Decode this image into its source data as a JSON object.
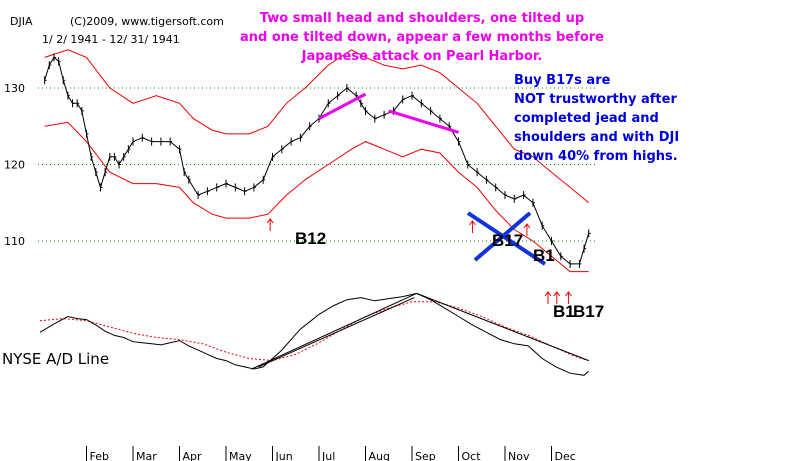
{
  "chart_data": {
    "type": "line",
    "title": "DJIA",
    "copyright": "(C)2009, www.tigersoft.com",
    "date_range": "1/ 2/ 1941 - 12/ 31/ 1941",
    "y_ticks": [
      {
        "value": 130,
        "label": "130"
      },
      {
        "value": 120,
        "label": "120"
      },
      {
        "value": 110,
        "label": "110"
      }
    ],
    "ylim": [
      102,
      136
    ],
    "months": [
      {
        "label": "Feb",
        "x": 1
      },
      {
        "label": "Mar",
        "x": 2
      },
      {
        "label": "Apr",
        "x": 3
      },
      {
        "label": "May",
        "x": 4
      },
      {
        "label": "Jun",
        "x": 5
      },
      {
        "label": "Jul",
        "x": 6
      },
      {
        "label": "Aug",
        "x": 7
      },
      {
        "label": "Sep",
        "x": 8
      },
      {
        "label": "Oct",
        "x": 9
      },
      {
        "label": "Nov",
        "x": 10
      },
      {
        "label": "Dec",
        "x": 11
      }
    ],
    "xlim": [
      0,
      12
    ],
    "price": [
      [
        0.1,
        131
      ],
      [
        0.2,
        133
      ],
      [
        0.3,
        134
      ],
      [
        0.4,
        133.5
      ],
      [
        0.5,
        131
      ],
      [
        0.6,
        129
      ],
      [
        0.7,
        128
      ],
      [
        0.8,
        128
      ],
      [
        0.9,
        127
      ],
      [
        1.0,
        124
      ],
      [
        1.1,
        121
      ],
      [
        1.2,
        119
      ],
      [
        1.3,
        117
      ],
      [
        1.4,
        119
      ],
      [
        1.5,
        121
      ],
      [
        1.6,
        121
      ],
      [
        1.7,
        120
      ],
      [
        1.8,
        121
      ],
      [
        1.9,
        122
      ],
      [
        2.0,
        123
      ],
      [
        2.2,
        123.5
      ],
      [
        2.4,
        123
      ],
      [
        2.6,
        123
      ],
      [
        2.8,
        123
      ],
      [
        3.0,
        122
      ],
      [
        3.1,
        119
      ],
      [
        3.2,
        118
      ],
      [
        3.4,
        116
      ],
      [
        3.6,
        116.5
      ],
      [
        3.8,
        117
      ],
      [
        4.0,
        117.5
      ],
      [
        4.2,
        117
      ],
      [
        4.4,
        116.5
      ],
      [
        4.6,
        117
      ],
      [
        4.8,
        118
      ],
      [
        5.0,
        121
      ],
      [
        5.2,
        122
      ],
      [
        5.4,
        123
      ],
      [
        5.6,
        123.5
      ],
      [
        5.8,
        125
      ],
      [
        6.0,
        126
      ],
      [
        6.2,
        128
      ],
      [
        6.4,
        129
      ],
      [
        6.6,
        130
      ],
      [
        6.8,
        129
      ],
      [
        6.9,
        128
      ],
      [
        7.0,
        127
      ],
      [
        7.2,
        126
      ],
      [
        7.4,
        126.5
      ],
      [
        7.6,
        127
      ],
      [
        7.8,
        128.5
      ],
      [
        8.0,
        129
      ],
      [
        8.2,
        128
      ],
      [
        8.4,
        127
      ],
      [
        8.6,
        126
      ],
      [
        8.8,
        125
      ],
      [
        9.0,
        123
      ],
      [
        9.2,
        120
      ],
      [
        9.4,
        119
      ],
      [
        9.6,
        118
      ],
      [
        9.8,
        117
      ],
      [
        10.0,
        116
      ],
      [
        10.2,
        115.5
      ],
      [
        10.4,
        116
      ],
      [
        10.6,
        115
      ],
      [
        10.8,
        112
      ],
      [
        11.0,
        110
      ],
      [
        11.2,
        108
      ],
      [
        11.4,
        107
      ],
      [
        11.6,
        107
      ],
      [
        11.7,
        109
      ],
      [
        11.8,
        111
      ]
    ],
    "upper_band": [
      [
        0.1,
        134
      ],
      [
        0.6,
        135
      ],
      [
        1.0,
        134
      ],
      [
        1.5,
        130
      ],
      [
        2.0,
        128
      ],
      [
        2.5,
        129
      ],
      [
        3.0,
        128
      ],
      [
        3.3,
        126
      ],
      [
        3.7,
        124.5
      ],
      [
        4.0,
        124
      ],
      [
        4.5,
        124
      ],
      [
        4.9,
        125
      ],
      [
        5.3,
        128
      ],
      [
        5.7,
        130
      ],
      [
        6.2,
        133
      ],
      [
        6.7,
        135
      ],
      [
        7.0,
        134
      ],
      [
        7.4,
        133
      ],
      [
        7.8,
        132.5
      ],
      [
        8.2,
        133
      ],
      [
        8.6,
        132
      ],
      [
        9.0,
        130
      ],
      [
        9.4,
        128
      ],
      [
        9.8,
        125
      ],
      [
        10.2,
        122
      ],
      [
        10.6,
        121
      ],
      [
        11.0,
        119
      ],
      [
        11.4,
        117
      ],
      [
        11.8,
        115
      ]
    ],
    "lower_band": [
      [
        0.1,
        125
      ],
      [
        0.6,
        125.5
      ],
      [
        1.0,
        123
      ],
      [
        1.5,
        119
      ],
      [
        2.0,
        117.5
      ],
      [
        2.5,
        117.5
      ],
      [
        3.0,
        117
      ],
      [
        3.3,
        115
      ],
      [
        3.7,
        113.5
      ],
      [
        4.0,
        113
      ],
      [
        4.5,
        113
      ],
      [
        4.9,
        113.5
      ],
      [
        5.3,
        116
      ],
      [
        5.7,
        118
      ],
      [
        6.2,
        120
      ],
      [
        6.7,
        122
      ],
      [
        7.0,
        123
      ],
      [
        7.4,
        122
      ],
      [
        7.8,
        121
      ],
      [
        8.2,
        122
      ],
      [
        8.6,
        121.5
      ],
      [
        9.0,
        119
      ],
      [
        9.4,
        117
      ],
      [
        9.8,
        114
      ],
      [
        10.2,
        111.5
      ],
      [
        10.6,
        110
      ],
      [
        11.0,
        108
      ],
      [
        11.4,
        106
      ],
      [
        11.8,
        106
      ]
    ],
    "ad_line": [
      [
        0.0,
        55
      ],
      [
        0.3,
        63
      ],
      [
        0.6,
        70
      ],
      [
        0.8,
        68
      ],
      [
        1.0,
        67
      ],
      [
        1.2,
        62
      ],
      [
        1.4,
        56
      ],
      [
        1.6,
        52
      ],
      [
        1.8,
        50
      ],
      [
        2.0,
        46
      ],
      [
        2.2,
        45
      ],
      [
        2.4,
        44
      ],
      [
        2.6,
        43
      ],
      [
        2.8,
        45
      ],
      [
        3.0,
        47
      ],
      [
        3.2,
        42
      ],
      [
        3.4,
        38
      ],
      [
        3.6,
        34
      ],
      [
        3.8,
        30
      ],
      [
        4.0,
        28
      ],
      [
        4.2,
        24
      ],
      [
        4.4,
        22
      ],
      [
        4.6,
        20
      ],
      [
        4.8,
        22
      ],
      [
        5.0,
        30
      ],
      [
        5.2,
        38
      ],
      [
        5.4,
        48
      ],
      [
        5.6,
        58
      ],
      [
        5.8,
        65
      ],
      [
        6.0,
        72
      ],
      [
        6.3,
        80
      ],
      [
        6.6,
        86
      ],
      [
        6.9,
        88
      ],
      [
        7.2,
        85
      ],
      [
        7.5,
        87
      ],
      [
        7.8,
        89
      ],
      [
        8.1,
        92
      ],
      [
        8.4,
        86
      ],
      [
        8.7,
        78
      ],
      [
        9.0,
        70
      ],
      [
        9.3,
        62
      ],
      [
        9.6,
        55
      ],
      [
        9.9,
        48
      ],
      [
        10.2,
        44
      ],
      [
        10.5,
        42
      ],
      [
        10.8,
        30
      ],
      [
        11.1,
        22
      ],
      [
        11.4,
        16
      ],
      [
        11.7,
        14
      ],
      [
        11.8,
        18
      ]
    ],
    "ad_ma": [
      [
        0.0,
        66
      ],
      [
        0.5,
        68
      ],
      [
        1.0,
        66
      ],
      [
        1.5,
        60
      ],
      [
        2.0,
        54
      ],
      [
        2.5,
        50
      ],
      [
        3.0,
        48
      ],
      [
        3.5,
        44
      ],
      [
        4.0,
        36
      ],
      [
        4.5,
        30
      ],
      [
        5.0,
        28
      ],
      [
        5.5,
        34
      ],
      [
        6.0,
        45
      ],
      [
        6.5,
        58
      ],
      [
        7.0,
        70
      ],
      [
        7.5,
        78
      ],
      [
        8.0,
        84
      ],
      [
        8.5,
        84
      ],
      [
        9.0,
        78
      ],
      [
        9.5,
        70
      ],
      [
        10.0,
        60
      ],
      [
        10.5,
        52
      ],
      [
        11.0,
        42
      ],
      [
        11.5,
        32
      ],
      [
        11.8,
        28
      ]
    ],
    "ad_label": "NYSE A/D Line",
    "signals": [
      {
        "label": "B12",
        "x": 4.95
      },
      {
        "label": "B17",
        "x": 9.3
      },
      {
        "label": "B1",
        "x": 10.6
      },
      {
        "label": "B1",
        "x": 11.05
      },
      {
        "label": "B17",
        "x": 11.45
      }
    ],
    "annotations": {
      "top": [
        "Two small head and shoulders, one tilted up",
        "and one tilted down, appear a few months before",
        "Japanese attack on Pearl Harbor."
      ],
      "right": [
        "Buy B17s are",
        "NOT trustworthy after",
        "completed jead and",
        "shoulders and with DJI",
        "down 40% from highs."
      ]
    },
    "colors": {
      "price": "#000000",
      "band": "#ee0000",
      "trend": "#ee00ee",
      "cross": "#1133dd",
      "grid": "#009900",
      "ad_ma": "#ee0000"
    }
  }
}
